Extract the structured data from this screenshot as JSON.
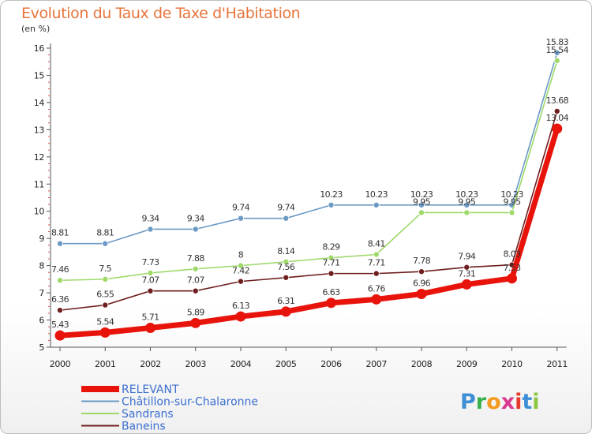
{
  "title": "Evolution du Taux de Taxe d'Habitation",
  "unit": "(en %)",
  "logo": {
    "text": "Proxiti",
    "letters": [
      {
        "ch": "P",
        "color": "#3d8fd6"
      },
      {
        "ch": "r",
        "color": "#39b14d"
      },
      {
        "ch": "o",
        "color": "#f39a1f"
      },
      {
        "ch": "x",
        "color": "#d93a8f"
      },
      {
        "ch": "i",
        "color": "#e33a2b"
      },
      {
        "ch": "t",
        "color": "#3d8fd6"
      },
      {
        "ch": "i",
        "color": "#8cc63f"
      }
    ]
  },
  "chart_data": {
    "type": "line",
    "title": "Evolution du Taux de Taxe d'Habitation",
    "ylabel": "(en %)",
    "xlabel": "",
    "x": [
      "2000",
      "2001",
      "2002",
      "2003",
      "2004",
      "2005",
      "2006",
      "2007",
      "2008",
      "2009",
      "2010",
      "2011"
    ],
    "ylim": [
      5,
      16
    ],
    "yticks": [
      5,
      6,
      7,
      8,
      9,
      10,
      11,
      12,
      13,
      14,
      15,
      16
    ],
    "grid": false,
    "legend_position": "bottom-left",
    "series": [
      {
        "name": "Châtillon-sur-Chalaronne",
        "color": "#6b9ac4",
        "values": [
          8.81,
          8.81,
          9.34,
          9.34,
          9.74,
          9.74,
          10.23,
          10.23,
          10.23,
          10.23,
          10.23,
          15.83
        ],
        "labels": [
          "8.81",
          "8.81",
          "9.34",
          "9.34",
          "9.74",
          "9.74",
          "10.23",
          "10.23",
          "10.23",
          "10.23",
          "10.23",
          "15.83"
        ]
      },
      {
        "name": "Sandrans",
        "color": "#9ed96a",
        "values": [
          7.46,
          7.5,
          7.73,
          7.88,
          8,
          8.14,
          8.29,
          8.41,
          9.95,
          9.95,
          9.95,
          15.54
        ],
        "labels": [
          "7.46",
          "7.5",
          "7.73",
          "7.88",
          "8",
          "8.14",
          "8.29",
          "8.41",
          "9.95",
          "9.95",
          "9.95",
          "15.54"
        ]
      },
      {
        "name": "Baneins",
        "color": "#6e1e1e",
        "values": [
          6.36,
          6.55,
          7.07,
          7.07,
          7.42,
          7.56,
          7.71,
          7.71,
          7.78,
          7.94,
          8.03,
          13.68
        ],
        "labels": [
          "6.36",
          "6.55",
          "7.07",
          "7.07",
          "7.42",
          "7.56",
          "7.71",
          "7.71",
          "7.78",
          "7.94",
          "8.03",
          "13.68"
        ]
      },
      {
        "name": "RELEVANT",
        "color": "#e8140c",
        "values": [
          5.43,
          5.54,
          5.71,
          5.89,
          6.13,
          6.31,
          6.63,
          6.76,
          6.96,
          7.31,
          7.53,
          13.04
        ],
        "labels": [
          "5.43",
          "5.54",
          "5.71",
          "5.89",
          "6.13",
          "6.31",
          "6.63",
          "6.76",
          "6.96",
          "7.31",
          "7.53",
          "13.04"
        ]
      }
    ],
    "legend": [
      {
        "name": "RELEVANT",
        "color": "#e8140c"
      },
      {
        "name": "Châtillon-sur-Chalaronne",
        "color": "#6b9ac4"
      },
      {
        "name": "Sandrans",
        "color": "#9ed96a"
      },
      {
        "name": "Baneins",
        "color": "#6e1e1e"
      }
    ]
  }
}
